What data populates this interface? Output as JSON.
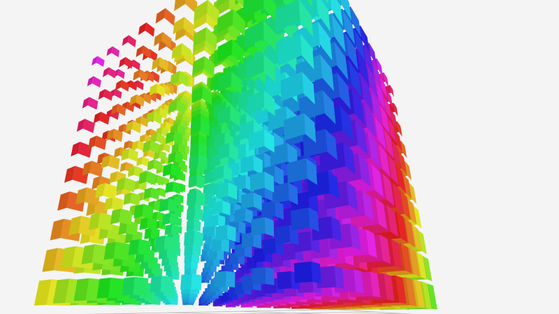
{
  "chart_data": {
    "type": "scatter3D",
    "symbol": "cube",
    "x": [
      0,
      1,
      2,
      3,
      4,
      5,
      6,
      7,
      8,
      9
    ],
    "y": [
      0,
      1,
      2,
      3,
      4,
      5,
      6,
      7,
      8,
      9
    ],
    "z": [
      0,
      1,
      2,
      3,
      4,
      5,
      6,
      7,
      8,
      9
    ],
    "color_encoding": "hue (rainbow)",
    "size_encoding": "value",
    "grid": true,
    "axis_labels_visible": false,
    "background": "#f4f4f4",
    "grid_color": "#b8b8b8"
  }
}
